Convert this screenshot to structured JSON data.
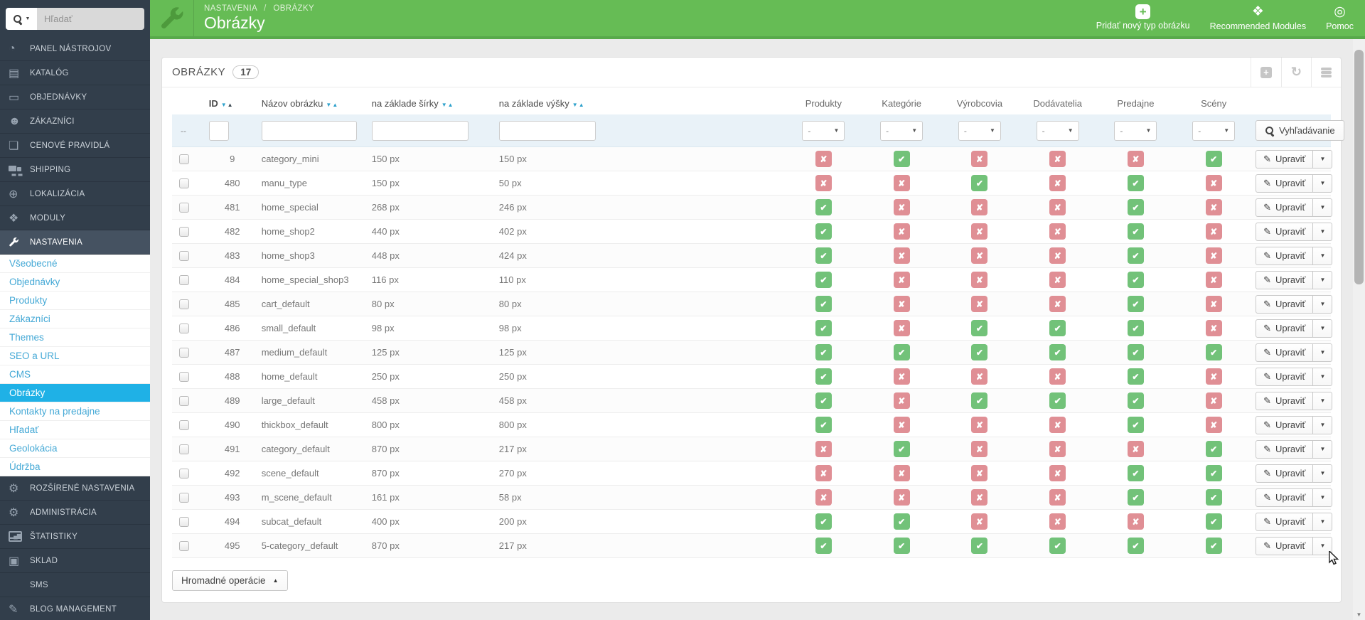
{
  "topbar": {
    "breadcrumb": {
      "parent": "NASTAVENIA",
      "separator": "/",
      "current": "OBRÁZKY"
    },
    "title": "Obrázky",
    "actions": [
      {
        "label": "Pridať nový typ obrázku",
        "icon": "add-image-type-icon"
      },
      {
        "label": "Recommended Modules",
        "icon": "modules-puzzle-icon"
      },
      {
        "label": "Pomoc",
        "icon": "help-lifering-icon"
      }
    ]
  },
  "sidebar": {
    "search": {
      "placeholder": "Hľadať"
    },
    "main_menu": [
      {
        "label": "PANEL NÁSTROJOV",
        "icon": "gauge"
      },
      {
        "label": "KATALÓG",
        "icon": "book"
      },
      {
        "label": "OBJEDNÁVKY",
        "icon": "credit-card"
      },
      {
        "label": "ZÁKAZNÍCI",
        "icon": "users"
      },
      {
        "label": "CENOVÉ PRAVIDLÁ",
        "icon": "tags"
      },
      {
        "label": "SHIPPING",
        "icon": "truck"
      },
      {
        "label": "LOKALIZÁCIA",
        "icon": "globe"
      },
      {
        "label": "MODULY",
        "icon": "puzzle"
      },
      {
        "label": "NASTAVENIA",
        "icon": "wrench",
        "active": true
      }
    ],
    "submenu": [
      {
        "label": "Všeobecné"
      },
      {
        "label": "Objednávky"
      },
      {
        "label": "Produkty"
      },
      {
        "label": "Zákazníci"
      },
      {
        "label": "Themes"
      },
      {
        "label": "SEO a URL"
      },
      {
        "label": "CMS"
      },
      {
        "label": "Obrázky",
        "active": true
      },
      {
        "label": "Kontakty na predajne"
      },
      {
        "label": "Hľadať"
      },
      {
        "label": "Geolokácia"
      },
      {
        "label": "Údržba"
      }
    ],
    "bottom_menu": [
      {
        "label": "ROZŠÍRENÉ NASTAVENIA",
        "icon": "gears"
      },
      {
        "label": "ADMINISTRÁCIA",
        "icon": "gear"
      },
      {
        "label": "ŠTATISTIKY",
        "icon": "stats"
      },
      {
        "label": "SKLAD",
        "icon": "box"
      },
      {
        "label": "SMS",
        "icon": "none"
      },
      {
        "label": "BLOG MANAGEMENT",
        "icon": "pencil"
      }
    ]
  },
  "panel": {
    "title": "OBRÁZKY",
    "count": "17"
  },
  "table": {
    "columns": [
      {
        "key": "check",
        "label": "",
        "type": "check"
      },
      {
        "key": "id",
        "label": "ID",
        "type": "id",
        "sort": "id"
      },
      {
        "key": "name",
        "label": "Názov obrázku",
        "type": "name",
        "sort": "both"
      },
      {
        "key": "width",
        "label": "na základe šírky",
        "type": "width",
        "sort": "both"
      },
      {
        "key": "height",
        "label": "na základe výšky",
        "type": "height",
        "sort": "both"
      },
      {
        "key": "products",
        "label": "Produkty",
        "type": "toggle"
      },
      {
        "key": "categories",
        "label": "Kategórie",
        "type": "toggle"
      },
      {
        "key": "manufacturers",
        "label": "Výrobcovia",
        "type": "toggle"
      },
      {
        "key": "suppliers",
        "label": "Dodávatelia",
        "type": "toggle"
      },
      {
        "key": "stores",
        "label": "Predajne",
        "type": "toggle"
      },
      {
        "key": "scenes",
        "label": "Scény",
        "type": "toggle"
      },
      {
        "key": "actions",
        "label": "",
        "type": "action"
      }
    ],
    "filter": {
      "check_placeholder": "--",
      "select_value": "-",
      "search_label": "Vyhľadávanie"
    },
    "row_action_label": "Upraviť",
    "rows": [
      {
        "id": "9",
        "name": "category_mini",
        "width": "150 px",
        "height": "150 px",
        "flags": [
          false,
          true,
          false,
          false,
          false,
          true
        ]
      },
      {
        "id": "480",
        "name": "manu_type",
        "width": "150 px",
        "height": "50 px",
        "flags": [
          false,
          false,
          true,
          false,
          true,
          false
        ]
      },
      {
        "id": "481",
        "name": "home_special",
        "width": "268 px",
        "height": "246 px",
        "flags": [
          true,
          false,
          false,
          false,
          true,
          false
        ]
      },
      {
        "id": "482",
        "name": "home_shop2",
        "width": "440 px",
        "height": "402 px",
        "flags": [
          true,
          false,
          false,
          false,
          true,
          false
        ]
      },
      {
        "id": "483",
        "name": "home_shop3",
        "width": "448 px",
        "height": "424 px",
        "flags": [
          true,
          false,
          false,
          false,
          true,
          false
        ]
      },
      {
        "id": "484",
        "name": "home_special_shop3",
        "width": "116 px",
        "height": "110 px",
        "flags": [
          true,
          false,
          false,
          false,
          true,
          false
        ]
      },
      {
        "id": "485",
        "name": "cart_default",
        "width": "80 px",
        "height": "80 px",
        "flags": [
          true,
          false,
          false,
          false,
          true,
          false
        ]
      },
      {
        "id": "486",
        "name": "small_default",
        "width": "98 px",
        "height": "98 px",
        "flags": [
          true,
          false,
          true,
          true,
          true,
          false
        ]
      },
      {
        "id": "487",
        "name": "medium_default",
        "width": "125 px",
        "height": "125 px",
        "flags": [
          true,
          true,
          true,
          true,
          true,
          true
        ]
      },
      {
        "id": "488",
        "name": "home_default",
        "width": "250 px",
        "height": "250 px",
        "flags": [
          true,
          false,
          false,
          false,
          true,
          false
        ]
      },
      {
        "id": "489",
        "name": "large_default",
        "width": "458 px",
        "height": "458 px",
        "flags": [
          true,
          false,
          true,
          true,
          true,
          false
        ]
      },
      {
        "id": "490",
        "name": "thickbox_default",
        "width": "800 px",
        "height": "800 px",
        "flags": [
          true,
          false,
          false,
          false,
          true,
          false
        ]
      },
      {
        "id": "491",
        "name": "category_default",
        "width": "870 px",
        "height": "217 px",
        "flags": [
          false,
          true,
          false,
          false,
          false,
          true
        ]
      },
      {
        "id": "492",
        "name": "scene_default",
        "width": "870 px",
        "height": "270 px",
        "flags": [
          false,
          false,
          false,
          false,
          true,
          true
        ]
      },
      {
        "id": "493",
        "name": "m_scene_default",
        "width": "161 px",
        "height": "58 px",
        "flags": [
          false,
          false,
          false,
          false,
          true,
          true
        ]
      },
      {
        "id": "494",
        "name": "subcat_default",
        "width": "400 px",
        "height": "200 px",
        "flags": [
          true,
          true,
          false,
          false,
          false,
          true
        ]
      },
      {
        "id": "495",
        "name": "5-category_default",
        "width": "870 px",
        "height": "217 px",
        "flags": [
          true,
          true,
          true,
          true,
          true,
          true
        ]
      }
    ]
  },
  "footer": {
    "bulk_actions_label": "Hromadné operácie"
  },
  "colors": {
    "topbar_green": "#66BC55",
    "sidebar_dark": "#323E4B",
    "submenu_active_blue": "#1FB1E6",
    "flag_on_green": "#72C279",
    "flag_off_red": "#E08F95"
  }
}
